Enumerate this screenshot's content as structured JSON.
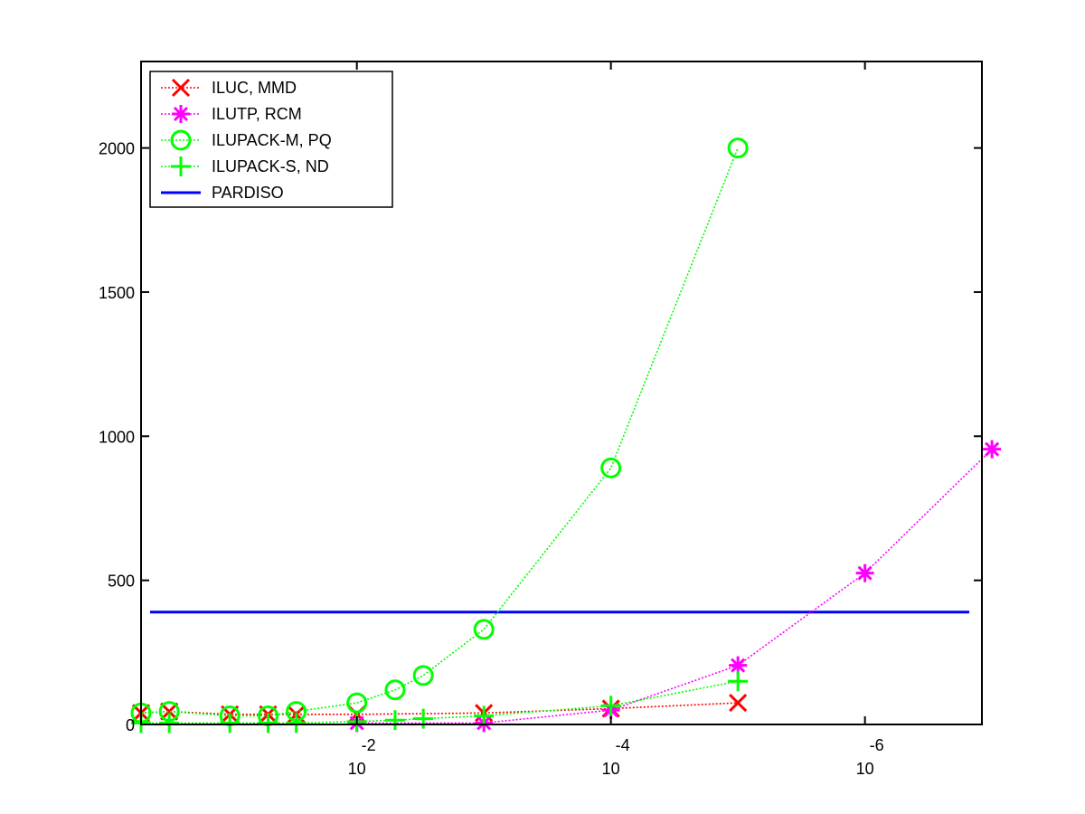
{
  "chart_data": {
    "type": "line",
    "title": "",
    "xlabel": "",
    "ylabel": "",
    "x_scale": "log-reversed",
    "xlim": [
      0.5,
      1.2e-07
    ],
    "ylim": [
      0,
      2300
    ],
    "grid": false,
    "legend_position": "top-left",
    "y_ticks": [
      0,
      500,
      1000,
      1500,
      2000
    ],
    "y_tick_labels": [
      "0",
      "500",
      "1000",
      "1500",
      "2000"
    ],
    "x_ticks": [
      0.01,
      0.0001,
      1e-06
    ],
    "x_tick_bases": [
      "10",
      "10",
      "10"
    ],
    "x_tick_exponents": [
      "-2",
      "-4",
      "-6"
    ],
    "series": [
      {
        "name": "ILUC, MMD",
        "color": "#ff0000",
        "marker": "x",
        "line": "dotted",
        "x": [
          0.5,
          0.3,
          0.1,
          0.05,
          0.03,
          0.01,
          0.001,
          0.0001,
          1e-05
        ],
        "y": [
          40,
          45,
          35,
          35,
          35,
          35,
          40,
          55,
          75
        ]
      },
      {
        "name": "ILUTP, RCM",
        "color": "#ff00ff",
        "marker": "asterisk",
        "line": "dotted",
        "x": [
          0.01,
          0.001,
          0.0001,
          1e-05,
          1e-06,
          1e-07
        ],
        "y": [
          5,
          5,
          50,
          205,
          525,
          955
        ]
      },
      {
        "name": "ILUPACK-M, PQ",
        "color": "#00ff00",
        "marker": "circle",
        "line": "dotted",
        "x": [
          0.5,
          0.3,
          0.1,
          0.05,
          0.03,
          0.01,
          0.005,
          0.003,
          0.001,
          0.0001,
          1e-05
        ],
        "y": [
          40,
          45,
          30,
          30,
          45,
          75,
          120,
          170,
          330,
          890,
          2000
        ]
      },
      {
        "name": "ILUPACK-S, ND",
        "color": "#00ff00",
        "marker": "plus",
        "line": "dotted",
        "x": [
          0.5,
          0.3,
          0.1,
          0.05,
          0.03,
          0.01,
          0.005,
          0.003,
          0.001,
          0.0001,
          1e-05
        ],
        "y": [
          5,
          5,
          5,
          5,
          5,
          10,
          15,
          20,
          30,
          65,
          150
        ]
      },
      {
        "name": "PARDISO",
        "color": "#0000ff",
        "marker": "none",
        "line": "solid",
        "x": [
          0.5,
          1e-07
        ],
        "y": [
          390,
          390
        ]
      }
    ]
  }
}
